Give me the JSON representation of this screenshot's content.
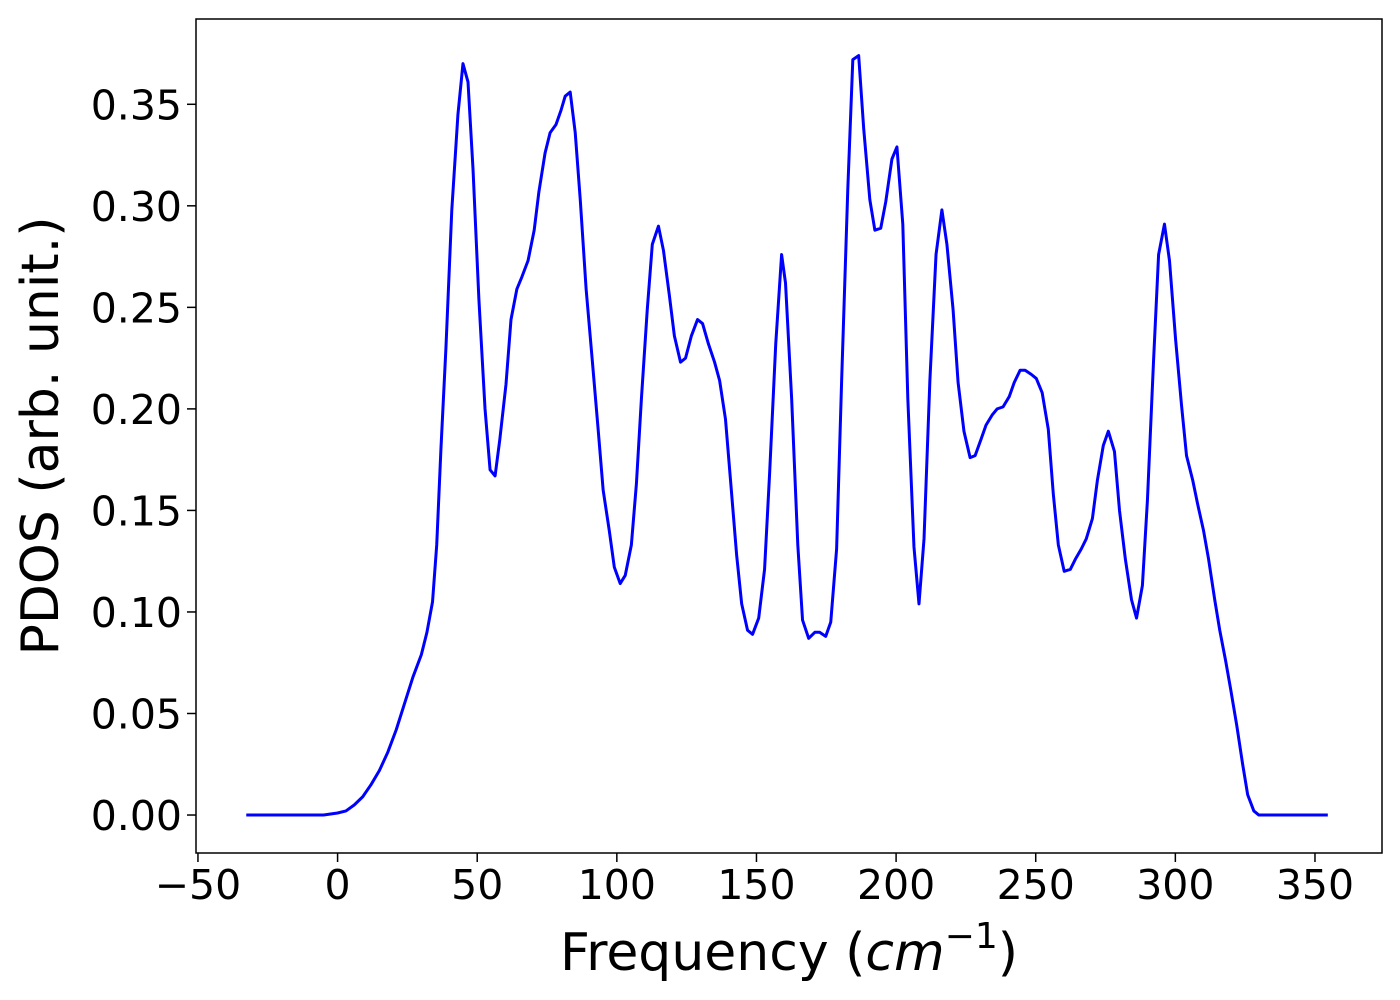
{
  "chart_data": {
    "type": "line",
    "xlabel": [
      "Frequency (",
      "cm",
      "−1",
      ")"
    ],
    "ylabel": "PDOS (arb. unit.)",
    "xlim": [
      -50.7,
      374
    ],
    "ylim": [
      -0.0187,
      0.392
    ],
    "xticks": [
      {
        "value": -50,
        "label": "−50"
      },
      0,
      50,
      100,
      150,
      200,
      250,
      300,
      350
    ],
    "yticks": [
      {
        "value": 0,
        "label": "0.00"
      },
      {
        "value": 0.05,
        "label": "0.05"
      },
      {
        "value": 0.1,
        "label": "0.10"
      },
      {
        "value": 0.15,
        "label": "0.15"
      },
      {
        "value": 0.2,
        "label": "0.20"
      },
      {
        "value": 0.25,
        "label": "0.25"
      },
      {
        "value": 0.3,
        "label": "0.30"
      },
      {
        "value": 0.35,
        "label": "0.35"
      }
    ],
    "grid": false,
    "x": [
      -32.7,
      -5,
      0,
      3,
      6,
      9,
      12,
      15,
      18,
      21,
      24,
      27,
      30,
      32,
      34,
      35.5,
      37,
      38.8,
      40.9,
      43.1,
      44.9,
      46.7,
      48.5,
      50.6,
      52.8,
      54.6,
      56.4,
      58.1,
      60.3,
      62.1,
      64.2,
      66,
      68.2,
      70.4,
      72.1,
      74.3,
      76.1,
      78.2,
      80,
      81.5,
      83.3,
      85.1,
      86.9,
      89,
      91.2,
      93.3,
      95.1,
      97.3,
      99.1,
      101.2,
      103,
      105.2,
      107,
      108.8,
      110.9,
      112.7,
      114.9,
      116.7,
      118.8,
      120.6,
      122.8,
      124.6,
      126.7,
      128.9,
      130.7,
      132.8,
      135,
      136.8,
      138.9,
      140.7,
      142.9,
      144.7,
      146.8,
      148.6,
      150.8,
      152.9,
      154.7,
      156.9,
      159,
      160.4,
      162.6,
      164.8,
      166.5,
      168.7,
      170.9,
      172.6,
      174.8,
      176.6,
      178.7,
      180.5,
      182.7,
      184.5,
      186.6,
      188.4,
      190.6,
      192.4,
      194.5,
      196.3,
      198.5,
      200.3,
      202.4,
      204.2,
      206.4,
      208.2,
      210,
      212.1,
      214.3,
      216.4,
      218.2,
      220.4,
      222.2,
      224.3,
      226.5,
      228.3,
      230.4,
      232.2,
      234.4,
      236.2,
      238.3,
      240.5,
      242.3,
      244.4,
      246.2,
      248.4,
      250.2,
      252.3,
      254.5,
      256.3,
      258.1,
      260.2,
      262.4,
      264.2,
      266.3,
      268.1,
      270.3,
      272.1,
      274.2,
      276,
      278.2,
      280,
      282.1,
      284.3,
      286.1,
      288.2,
      290,
      292.2,
      294,
      296.1,
      297.9,
      300.1,
      302.2,
      304,
      306.2,
      308,
      310.1,
      311.9,
      314.1,
      315.9,
      318,
      319.8,
      322,
      324.1,
      325.9,
      328.1,
      329.9,
      354.6
    ],
    "series": [
      {
        "name": "PDOS",
        "color": "#0000ff",
        "values": [
          0,
          0,
          0.001,
          0.002,
          0.005,
          0.009,
          0.015,
          0.022,
          0.031,
          0.042,
          0.055,
          0.068,
          0.079,
          0.09,
          0.105,
          0.133,
          0.18,
          0.23,
          0.298,
          0.345,
          0.37,
          0.361,
          0.318,
          0.254,
          0.2,
          0.17,
          0.167,
          0.185,
          0.212,
          0.244,
          0.259,
          0.265,
          0.273,
          0.288,
          0.307,
          0.326,
          0.336,
          0.34,
          0.347,
          0.354,
          0.356,
          0.336,
          0.303,
          0.259,
          0.224,
          0.19,
          0.16,
          0.14,
          0.122,
          0.114,
          0.118,
          0.133,
          0.163,
          0.205,
          0.249,
          0.281,
          0.29,
          0.278,
          0.256,
          0.236,
          0.223,
          0.225,
          0.236,
          0.244,
          0.242,
          0.232,
          0.223,
          0.214,
          0.195,
          0.165,
          0.128,
          0.104,
          0.091,
          0.089,
          0.097,
          0.121,
          0.168,
          0.232,
          0.276,
          0.262,
          0.205,
          0.133,
          0.096,
          0.087,
          0.09,
          0.09,
          0.088,
          0.095,
          0.131,
          0.214,
          0.308,
          0.372,
          0.374,
          0.338,
          0.303,
          0.288,
          0.289,
          0.302,
          0.323,
          0.329,
          0.291,
          0.205,
          0.132,
          0.104,
          0.136,
          0.214,
          0.276,
          0.298,
          0.281,
          0.249,
          0.213,
          0.189,
          0.176,
          0.177,
          0.185,
          0.192,
          0.197,
          0.2,
          0.201,
          0.206,
          0.213,
          0.219,
          0.219,
          0.217,
          0.215,
          0.208,
          0.19,
          0.158,
          0.133,
          0.12,
          0.121,
          0.126,
          0.131,
          0.136,
          0.146,
          0.165,
          0.182,
          0.189,
          0.179,
          0.15,
          0.126,
          0.106,
          0.097,
          0.113,
          0.155,
          0.224,
          0.276,
          0.291,
          0.273,
          0.234,
          0.202,
          0.177,
          0.165,
          0.153,
          0.14,
          0.126,
          0.106,
          0.091,
          0.076,
          0.062,
          0.044,
          0.025,
          0.01,
          0.002,
          0,
          0
        ]
      }
    ]
  }
}
